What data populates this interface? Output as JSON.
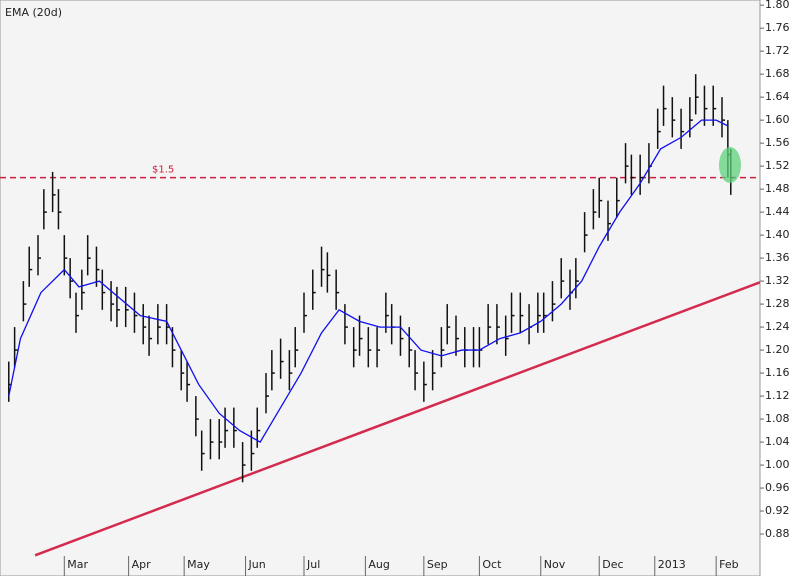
{
  "chart_data": {
    "type": "ohlc",
    "legend": "EMA (20d)",
    "xlim": [
      0,
      260
    ],
    "ylim": [
      0.807,
      1.809
    ],
    "xticks": [
      {
        "value": 22,
        "label": "Mar"
      },
      {
        "value": 44,
        "label": "Apr"
      },
      {
        "value": 63,
        "label": "May"
      },
      {
        "value": 84,
        "label": "Jun"
      },
      {
        "value": 104,
        "label": "Jul"
      },
      {
        "value": 125,
        "label": "Aug"
      },
      {
        "value": 145,
        "label": "Sep"
      },
      {
        "value": 164,
        "label": "Oct"
      },
      {
        "value": 185,
        "label": "Nov"
      },
      {
        "value": 205,
        "label": "Dec"
      },
      {
        "value": 224,
        "label": "2013"
      },
      {
        "value": 245,
        "label": "Feb"
      }
    ],
    "yticks": [
      0.88,
      0.92,
      0.96,
      {
        "value": 1,
        "label": "1.00"
      },
      1.04,
      1.08,
      1.12,
      1.16,
      {
        "value": 1.2,
        "label": "1.20"
      },
      1.24,
      1.28,
      1.32,
      1.36,
      {
        "value": 1.4,
        "label": "1.40"
      },
      1.44,
      1.48,
      1.52,
      1.56,
      {
        "value": 1.6,
        "label": "1.60"
      },
      1.64,
      1.68,
      1.72,
      1.76,
      {
        "value": 1.8,
        "label": "1.80"
      }
    ],
    "bars": {
      "color": "#111111",
      "x": [
        3,
        5,
        8,
        10,
        13,
        15,
        18,
        20,
        22,
        24,
        26,
        28,
        30,
        33,
        35,
        38,
        40,
        43,
        46,
        49,
        51,
        54,
        57,
        59,
        62,
        64,
        67,
        69,
        72,
        75,
        77,
        80,
        83,
        86,
        88,
        91,
        93,
        96,
        99,
        101,
        104,
        107,
        110,
        112,
        115,
        118,
        121,
        123,
        126,
        129,
        132,
        134,
        137,
        140,
        142,
        145,
        148,
        151,
        153,
        156,
        159,
        162,
        164,
        167,
        170,
        173,
        175,
        178,
        181,
        184,
        186,
        189,
        192,
        195,
        197,
        200,
        203,
        205,
        208,
        211,
        214,
        216,
        219,
        222,
        225,
        227,
        230,
        233,
        236,
        238,
        241,
        244,
        247,
        249,
        250
      ],
      "high": [
        1.18,
        1.24,
        1.32,
        1.38,
        1.4,
        1.48,
        1.51,
        1.48,
        1.4,
        1.36,
        1.3,
        1.34,
        1.4,
        1.38,
        1.34,
        1.32,
        1.31,
        1.31,
        1.3,
        1.28,
        1.26,
        1.28,
        1.28,
        1.24,
        1.2,
        1.18,
        1.12,
        1.06,
        1.08,
        1.08,
        1.1,
        1.1,
        1.04,
        1.06,
        1.1,
        1.16,
        1.2,
        1.22,
        1.2,
        1.24,
        1.3,
        1.34,
        1.38,
        1.37,
        1.34,
        1.28,
        1.24,
        1.26,
        1.24,
        1.24,
        1.3,
        1.28,
        1.26,
        1.24,
        1.2,
        1.18,
        1.2,
        1.24,
        1.28,
        1.26,
        1.24,
        1.24,
        1.24,
        1.28,
        1.28,
        1.26,
        1.3,
        1.3,
        1.28,
        1.3,
        1.3,
        1.32,
        1.36,
        1.34,
        1.36,
        1.44,
        1.48,
        1.5,
        1.46,
        1.5,
        1.56,
        1.54,
        1.54,
        1.56,
        1.62,
        1.66,
        1.64,
        1.62,
        1.64,
        1.68,
        1.66,
        1.66,
        1.64,
        1.6,
        1.55
      ],
      "low": [
        1.11,
        1.17,
        1.25,
        1.31,
        1.33,
        1.41,
        1.44,
        1.41,
        1.33,
        1.29,
        1.23,
        1.27,
        1.33,
        1.31,
        1.27,
        1.25,
        1.24,
        1.24,
        1.23,
        1.21,
        1.19,
        1.21,
        1.21,
        1.17,
        1.13,
        1.11,
        1.05,
        0.99,
        1.01,
        1.01,
        1.03,
        1.03,
        0.97,
        0.99,
        1.03,
        1.09,
        1.13,
        1.15,
        1.13,
        1.17,
        1.23,
        1.27,
        1.31,
        1.3,
        1.27,
        1.21,
        1.17,
        1.19,
        1.17,
        1.17,
        1.23,
        1.21,
        1.19,
        1.17,
        1.13,
        1.11,
        1.13,
        1.17,
        1.21,
        1.19,
        1.17,
        1.17,
        1.17,
        1.21,
        1.21,
        1.19,
        1.23,
        1.23,
        1.21,
        1.23,
        1.23,
        1.25,
        1.29,
        1.27,
        1.29,
        1.37,
        1.41,
        1.43,
        1.39,
        1.43,
        1.49,
        1.47,
        1.47,
        1.49,
        1.55,
        1.59,
        1.57,
        1.55,
        1.57,
        1.61,
        1.59,
        1.59,
        1.57,
        1.5,
        1.47
      ],
      "close": [
        1.14,
        1.2,
        1.28,
        1.34,
        1.36,
        1.44,
        1.47,
        1.44,
        1.36,
        1.32,
        1.26,
        1.3,
        1.36,
        1.34,
        1.3,
        1.28,
        1.27,
        1.27,
        1.26,
        1.24,
        1.22,
        1.24,
        1.24,
        1.2,
        1.16,
        1.14,
        1.08,
        1.02,
        1.04,
        1.04,
        1.06,
        1.06,
        1.0,
        1.02,
        1.06,
        1.12,
        1.16,
        1.18,
        1.16,
        1.2,
        1.26,
        1.3,
        1.34,
        1.33,
        1.3,
        1.24,
        1.2,
        1.22,
        1.2,
        1.2,
        1.26,
        1.24,
        1.22,
        1.2,
        1.16,
        1.14,
        1.16,
        1.2,
        1.24,
        1.22,
        1.2,
        1.2,
        1.2,
        1.24,
        1.24,
        1.22,
        1.26,
        1.26,
        1.24,
        1.26,
        1.26,
        1.28,
        1.32,
        1.3,
        1.32,
        1.4,
        1.44,
        1.46,
        1.42,
        1.46,
        1.52,
        1.5,
        1.5,
        1.52,
        1.58,
        1.62,
        1.6,
        1.58,
        1.6,
        1.64,
        1.62,
        1.62,
        1.6,
        1.54,
        1.5
      ]
    },
    "ema": {
      "color": "#1010ee",
      "x": [
        3,
        7,
        14,
        22,
        27,
        34,
        41,
        48,
        57,
        62,
        68,
        75,
        82,
        89,
        96,
        103,
        110,
        116,
        123,
        130,
        137,
        144,
        151,
        158,
        164,
        171,
        178,
        185,
        192,
        199,
        205,
        212,
        219,
        226,
        233,
        240,
        245,
        249
      ],
      "values": [
        1.12,
        1.22,
        1.3,
        1.34,
        1.31,
        1.32,
        1.29,
        1.26,
        1.25,
        1.2,
        1.14,
        1.09,
        1.06,
        1.04,
        1.1,
        1.16,
        1.23,
        1.27,
        1.25,
        1.24,
        1.24,
        1.2,
        1.19,
        1.2,
        1.2,
        1.22,
        1.23,
        1.25,
        1.28,
        1.32,
        1.38,
        1.44,
        1.49,
        1.55,
        1.57,
        1.6,
        1.6,
        1.59
      ]
    },
    "trendline": {
      "color": "#d42a4e",
      "x": [
        12,
        260
      ],
      "values": [
        0.843,
        1.318
      ]
    },
    "hline": {
      "value": 1.5,
      "label": "$1.5",
      "color": "#cc1f3f"
    }
  }
}
